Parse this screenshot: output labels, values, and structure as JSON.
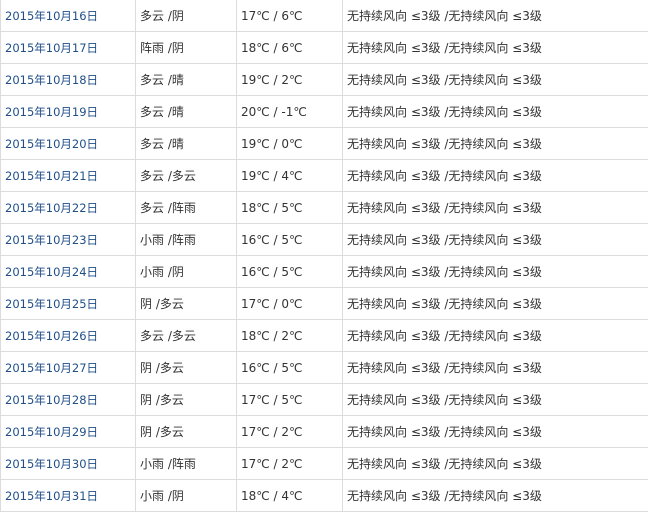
{
  "rows": [
    {
      "date": "2015年10月16日",
      "weather": "多云 /阴",
      "temp": "17℃ / 6℃",
      "wind": "无持续风向 ≤3级 /无持续风向 ≤3级"
    },
    {
      "date": "2015年10月17日",
      "weather": "阵雨 /阴",
      "temp": "18℃ / 6℃",
      "wind": "无持续风向 ≤3级 /无持续风向 ≤3级"
    },
    {
      "date": "2015年10月18日",
      "weather": "多云 /晴",
      "temp": "19℃ / 2℃",
      "wind": "无持续风向 ≤3级 /无持续风向 ≤3级"
    },
    {
      "date": "2015年10月19日",
      "weather": "多云 /晴",
      "temp": "20℃ / -1℃",
      "wind": "无持续风向 ≤3级 /无持续风向 ≤3级"
    },
    {
      "date": "2015年10月20日",
      "weather": "多云 /晴",
      "temp": "19℃ / 0℃",
      "wind": "无持续风向 ≤3级 /无持续风向 ≤3级"
    },
    {
      "date": "2015年10月21日",
      "weather": "多云 /多云",
      "temp": "19℃ / 4℃",
      "wind": "无持续风向 ≤3级 /无持续风向 ≤3级"
    },
    {
      "date": "2015年10月22日",
      "weather": "多云 /阵雨",
      "temp": "18℃ / 5℃",
      "wind": "无持续风向 ≤3级 /无持续风向 ≤3级"
    },
    {
      "date": "2015年10月23日",
      "weather": "小雨 /阵雨",
      "temp": "16℃ / 5℃",
      "wind": "无持续风向 ≤3级 /无持续风向 ≤3级"
    },
    {
      "date": "2015年10月24日",
      "weather": "小雨 /阴",
      "temp": "16℃ / 5℃",
      "wind": "无持续风向 ≤3级 /无持续风向 ≤3级"
    },
    {
      "date": "2015年10月25日",
      "weather": "阴 /多云",
      "temp": "17℃ / 0℃",
      "wind": "无持续风向 ≤3级 /无持续风向 ≤3级"
    },
    {
      "date": "2015年10月26日",
      "weather": "多云 /多云",
      "temp": "18℃ / 2℃",
      "wind": "无持续风向 ≤3级 /无持续风向 ≤3级"
    },
    {
      "date": "2015年10月27日",
      "weather": "阴 /多云",
      "temp": "16℃ / 5℃",
      "wind": "无持续风向 ≤3级 /无持续风向 ≤3级"
    },
    {
      "date": "2015年10月28日",
      "weather": "阴 /多云",
      "temp": "17℃ / 5℃",
      "wind": "无持续风向 ≤3级 /无持续风向 ≤3级"
    },
    {
      "date": "2015年10月29日",
      "weather": "阴 /多云",
      "temp": "17℃ / 2℃",
      "wind": "无持续风向 ≤3级 /无持续风向 ≤3级"
    },
    {
      "date": "2015年10月30日",
      "weather": "小雨 /阵雨",
      "temp": "17℃ / 2℃",
      "wind": "无持续风向 ≤3级 /无持续风向 ≤3级"
    },
    {
      "date": "2015年10月31日",
      "weather": "小雨 /阴",
      "temp": "18℃ / 4℃",
      "wind": "无持续风向 ≤3级 /无持续风向 ≤3级"
    }
  ],
  "colors": {
    "date_link": "#1f4f88",
    "text": "#333333",
    "border": "#dcdcdc"
  }
}
